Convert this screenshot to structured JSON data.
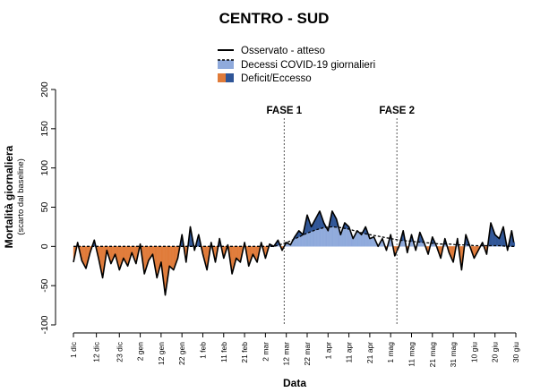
{
  "chart_data": {
    "type": "line",
    "title": "CENTRO - SUD",
    "xlabel": "Data",
    "ylabel": "Mortalità giornaliera",
    "ylabel_sub": "(scarto dal baseline)",
    "ylim": [
      -100,
      200
    ],
    "yticks": [
      -100,
      -50,
      0,
      50,
      100,
      150,
      200
    ],
    "x_start": "1 dic",
    "num_days": 212,
    "x_ticks": [
      {
        "label": "1 dic",
        "day": 0
      },
      {
        "label": "12 dic",
        "day": 11
      },
      {
        "label": "23 dic",
        "day": 22
      },
      {
        "label": "2 gen",
        "day": 32
      },
      {
        "label": "12 gen",
        "day": 42
      },
      {
        "label": "22 gen",
        "day": 52
      },
      {
        "label": "1 feb",
        "day": 62
      },
      {
        "label": "11 feb",
        "day": 72
      },
      {
        "label": "21 feb",
        "day": 82
      },
      {
        "label": "2 mar",
        "day": 92
      },
      {
        "label": "12 mar",
        "day": 102
      },
      {
        "label": "22 mar",
        "day": 112
      },
      {
        "label": "1 apr",
        "day": 122
      },
      {
        "label": "11 apr",
        "day": 132
      },
      {
        "label": "21 apr",
        "day": 142
      },
      {
        "label": "1 mag",
        "day": 152
      },
      {
        "label": "11 mag",
        "day": 162
      },
      {
        "label": "21 mag",
        "day": 172
      },
      {
        "label": "31 mag",
        "day": 182
      },
      {
        "label": "10 giu",
        "day": 192
      },
      {
        "label": "20 giu",
        "day": 202
      },
      {
        "label": "30 giu",
        "day": 212
      }
    ],
    "phases": [
      {
        "label": "FASE 1",
        "day": 101
      },
      {
        "label": "FASE 2",
        "day": 155
      }
    ],
    "legend": [
      {
        "label": "Osservato - atteso",
        "kind": "line"
      },
      {
        "label": "Decessi COVID-19 giornalieri",
        "kind": "dashed-fill"
      },
      {
        "label": "Deficit/Eccesso",
        "kind": "split"
      }
    ],
    "colors": {
      "observed": "#000000",
      "covid": "#8faadc",
      "deficit": "#e07b39",
      "excess": "#2f5597"
    },
    "covid_daily": {
      "x": [
        96,
        100,
        104,
        108,
        112,
        116,
        120,
        124,
        128,
        132,
        136,
        140,
        144,
        148,
        152,
        156,
        160,
        164,
        168,
        172,
        176,
        180,
        184,
        188,
        192,
        196,
        200,
        204,
        208,
        211
      ],
      "values": [
        0,
        3,
        7,
        12,
        17,
        21,
        24,
        25,
        24,
        22,
        19,
        16,
        14,
        12,
        10,
        8,
        7,
        6,
        5,
        4,
        3,
        3,
        2,
        2,
        1,
        1,
        1,
        1,
        0,
        0
      ]
    },
    "observed_minus_expected": {
      "x": [
        0,
        2,
        4,
        6,
        8,
        10,
        12,
        14,
        16,
        18,
        20,
        22,
        24,
        26,
        28,
        30,
        32,
        34,
        36,
        38,
        40,
        42,
        44,
        46,
        48,
        50,
        52,
        54,
        56,
        58,
        60,
        62,
        64,
        66,
        68,
        70,
        72,
        74,
        76,
        78,
        80,
        82,
        84,
        86,
        88,
        90,
        92,
        94,
        96,
        98,
        100,
        102,
        104,
        106,
        108,
        110,
        112,
        114,
        116,
        118,
        120,
        122,
        124,
        126,
        128,
        130,
        132,
        134,
        136,
        138,
        140,
        142,
        144,
        146,
        148,
        150,
        152,
        154,
        156,
        158,
        160,
        162,
        164,
        166,
        168,
        170,
        172,
        174,
        176,
        178,
        180,
        182,
        184,
        186,
        188,
        190,
        192,
        194,
        196,
        198,
        200,
        202,
        204,
        206,
        208,
        210,
        211
      ],
      "values": [
        -20,
        5,
        -18,
        -28,
        -8,
        8,
        -15,
        -40,
        -5,
        -22,
        -10,
        -30,
        -15,
        -25,
        -8,
        -22,
        3,
        -35,
        -18,
        -10,
        -40,
        -20,
        -62,
        -25,
        -30,
        -15,
        15,
        -20,
        25,
        -5,
        15,
        -10,
        -30,
        5,
        -20,
        10,
        -15,
        2,
        -35,
        -15,
        -20,
        5,
        -25,
        -10,
        -20,
        5,
        -15,
        3,
        0,
        8,
        -5,
        5,
        2,
        12,
        20,
        15,
        40,
        25,
        35,
        45,
        30,
        20,
        45,
        35,
        15,
        30,
        25,
        10,
        20,
        15,
        25,
        10,
        12,
        0,
        10,
        -5,
        15,
        -12,
        0,
        20,
        -8,
        15,
        -5,
        18,
        5,
        -10,
        12,
        0,
        -15,
        10,
        -8,
        -20,
        10,
        -30,
        15,
        0,
        -15,
        -5,
        5,
        -10,
        30,
        15,
        10,
        25,
        -5,
        20,
        5
      ]
    }
  }
}
